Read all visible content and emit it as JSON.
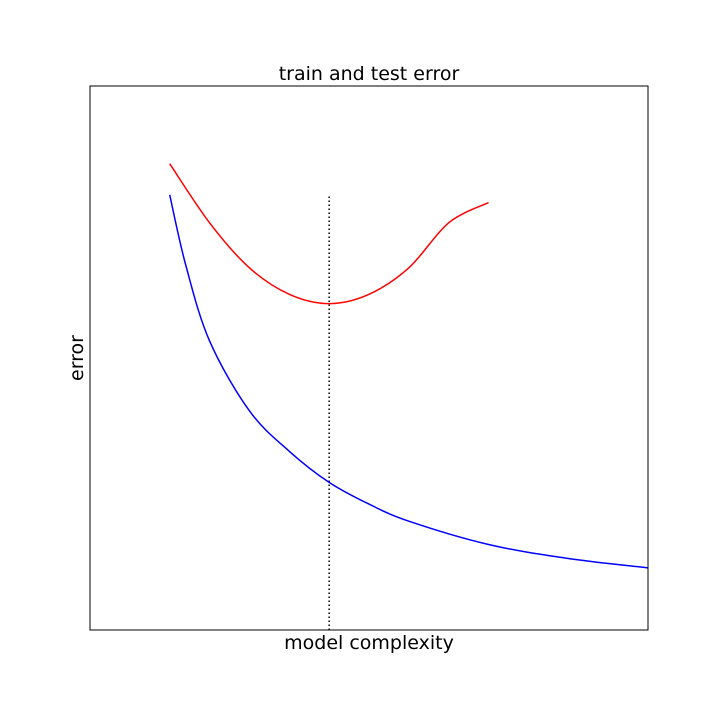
{
  "chart_data": {
    "type": "line",
    "title": "train and test error",
    "xlabel": "model complexity",
    "ylabel": "error",
    "xlim": [
      0,
      3.5
    ],
    "ylim": [
      0,
      3.5
    ],
    "grid": false,
    "ticks_visible": false,
    "series": [
      {
        "color": "#ff0000",
        "x": [
          0.5,
          0.75,
          1.0,
          1.25,
          1.5,
          1.75,
          2.0,
          2.25,
          2.5
        ],
        "y": [
          3.0,
          2.62,
          2.33,
          2.16,
          2.1,
          2.16,
          2.33,
          2.62,
          2.75
        ]
      },
      {
        "color": "#0000ff",
        "x": [
          0.5,
          0.6,
          0.75,
          1.0,
          1.25,
          1.5,
          1.75,
          2.0,
          2.5,
          3.0,
          3.5
        ],
        "y": [
          2.8,
          2.35,
          1.86,
          1.41,
          1.15,
          0.95,
          0.81,
          0.7,
          0.55,
          0.46,
          0.4
        ]
      }
    ],
    "vline": {
      "x": 1.5,
      "ymin": 0,
      "ymax": 2.8,
      "color": "#000000",
      "style": "dotted"
    }
  }
}
